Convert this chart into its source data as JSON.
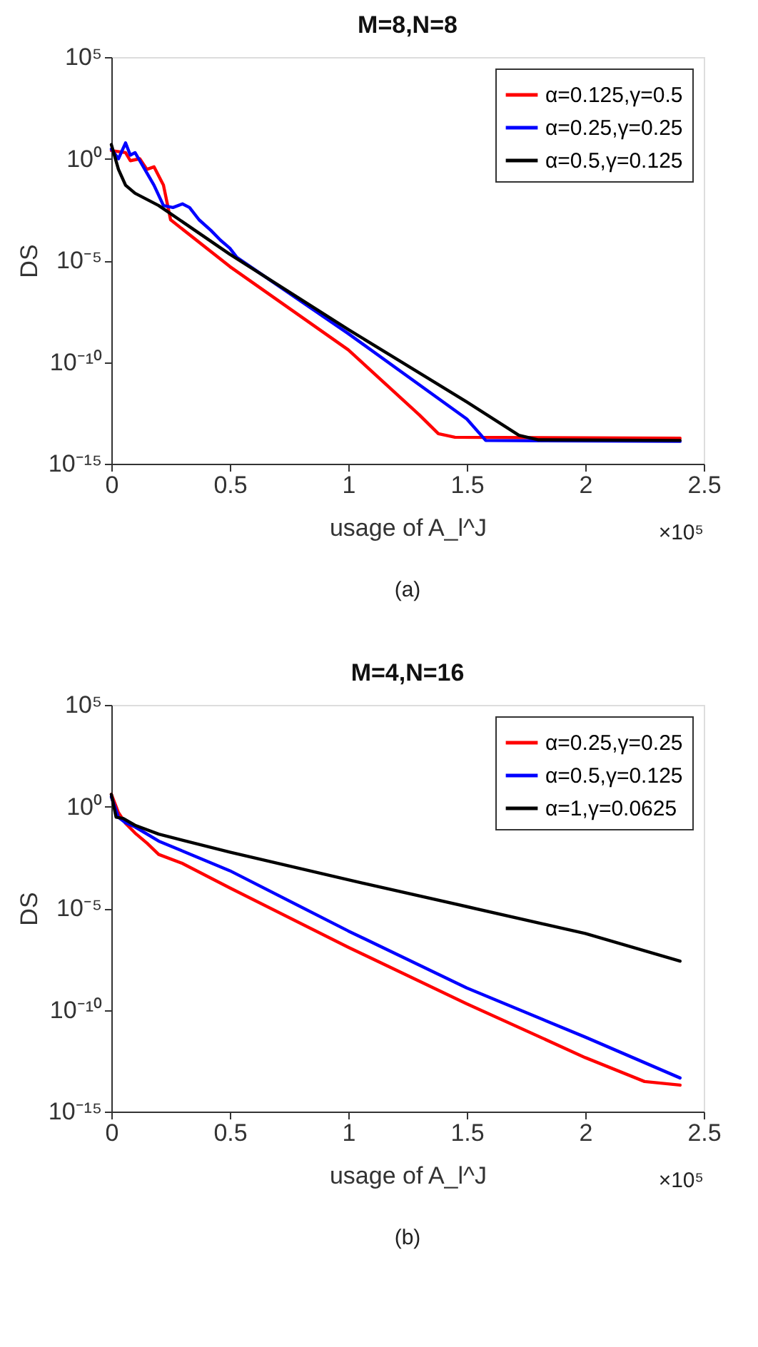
{
  "chart_data": [
    {
      "type": "line",
      "title": "M=8,N=8",
      "xlabel": "usage of A_l^J",
      "ylabel": "DS",
      "log": "y",
      "grid": false,
      "legend": "top right",
      "line_style": "solid",
      "marker": "none",
      "xlim": [
        0,
        2.5
      ],
      "xticks": [
        0,
        0.5,
        1,
        1.5,
        2,
        2.5
      ],
      "ylim": [
        1e-15,
        100000
      ],
      "yticks": [
        {
          "value": 100000,
          "label": "10⁵"
        },
        {
          "value": 1,
          "label": "10⁰"
        },
        {
          "value": 1e-05,
          "label": "10⁻⁵"
        },
        {
          "value": 1e-10,
          "label": "10⁻¹⁰"
        },
        {
          "value": 1e-15,
          "label": "10⁻¹⁵"
        }
      ],
      "annotations": [
        "×10⁵",
        "(a)"
      ],
      "series": [
        {
          "name": "α=0.125,γ=0.5",
          "color": "#ff0000",
          "x": [
            0,
            0.06,
            0.08,
            0.12,
            0.15,
            0.18,
            0.22,
            0.25,
            0.5,
            1.0,
            1.3,
            1.38,
            1.45,
            2.4
          ],
          "values": [
            2.5,
            2,
            0.8,
            1,
            0.3,
            0.4,
            0.05,
            0.001,
            5e-06,
            4e-10,
            2.5e-13,
            3e-14,
            2e-14,
            1.8e-14
          ]
        },
        {
          "name": "α=0.25,γ=0.25",
          "color": "#0000ff",
          "x": [
            0,
            0.03,
            0.06,
            0.08,
            0.1,
            0.12,
            0.15,
            0.18,
            0.22,
            0.26,
            0.3,
            0.33,
            0.37,
            0.42,
            0.46,
            0.5,
            0.53,
            1.0,
            1.5,
            1.58,
            2.4
          ],
          "values": [
            3,
            1,
            6,
            1.5,
            2,
            0.8,
            0.2,
            0.05,
            0.005,
            0.004,
            0.006,
            0.004,
            0.001,
            0.0003,
            0.0001,
            4e-05,
            1.4e-05,
            2.5e-09,
            1.6e-13,
            1.4e-14,
            1.26e-14
          ]
        },
        {
          "name": "α=0.5,γ=0.125",
          "color": "#000000",
          "x": [
            0,
            0.03,
            0.06,
            0.1,
            0.2,
            0.5,
            1.0,
            1.5,
            1.72,
            1.8,
            2.4
          ],
          "values": [
            5,
            0.3,
            0.05,
            0.02,
            0.005,
            2e-05,
            4e-09,
            1.1e-12,
            2.5e-14,
            1.5e-14,
            1.4e-14
          ]
        }
      ]
    },
    {
      "type": "line",
      "title": "M=4,N=16",
      "xlabel": "usage of A_l^J",
      "ylabel": "DS",
      "log": "y",
      "grid": false,
      "legend": "top right",
      "line_style": "solid",
      "marker": "none",
      "xlim": [
        0,
        2.5
      ],
      "xticks": [
        0,
        0.5,
        1,
        1.5,
        2,
        2.5
      ],
      "ylim": [
        1e-15,
        100000
      ],
      "yticks": [
        {
          "value": 100000,
          "label": "10⁵"
        },
        {
          "value": 1,
          "label": "10⁰"
        },
        {
          "value": 1e-05,
          "label": "10⁻⁵"
        },
        {
          "value": 1e-10,
          "label": "10⁻¹⁰"
        },
        {
          "value": 1e-15,
          "label": "10⁻¹⁵"
        }
      ],
      "annotations": [
        "×10⁵",
        "(b)"
      ],
      "series": [
        {
          "name": "α=0.25,γ=0.25",
          "color": "#ff0000",
          "x": [
            0,
            0.03,
            0.06,
            0.1,
            0.15,
            0.2,
            0.3,
            0.5,
            1.0,
            1.5,
            2.0,
            2.25,
            2.4
          ],
          "values": [
            4,
            0.5,
            0.15,
            0.05,
            0.016,
            0.0044,
            0.0016,
            0.0001,
            1.2e-07,
            2e-10,
            4.5e-13,
            3e-14,
            2e-14
          ]
        },
        {
          "name": "α=0.5,γ=0.125",
          "color": "#0000ff",
          "x": [
            0,
            0.03,
            0.06,
            0.1,
            0.2,
            0.5,
            1.0,
            1.5,
            2.0,
            2.4
          ],
          "values": [
            3,
            0.3,
            0.16,
            0.1,
            0.02,
            0.0007,
            7.6e-07,
            1.2e-09,
            4.6e-12,
            4.5e-14
          ]
        },
        {
          "name": "α=1,γ=0.0625",
          "color": "#000000",
          "x": [
            0,
            0.02,
            0.05,
            0.1,
            0.2,
            0.5,
            1.0,
            1.5,
            2.0,
            2.4
          ],
          "values": [
            4,
            0.3,
            0.26,
            0.12,
            0.044,
            0.0057,
            0.00025,
            1.2e-05,
            5.7e-07,
            2.5e-08
          ]
        }
      ]
    }
  ]
}
